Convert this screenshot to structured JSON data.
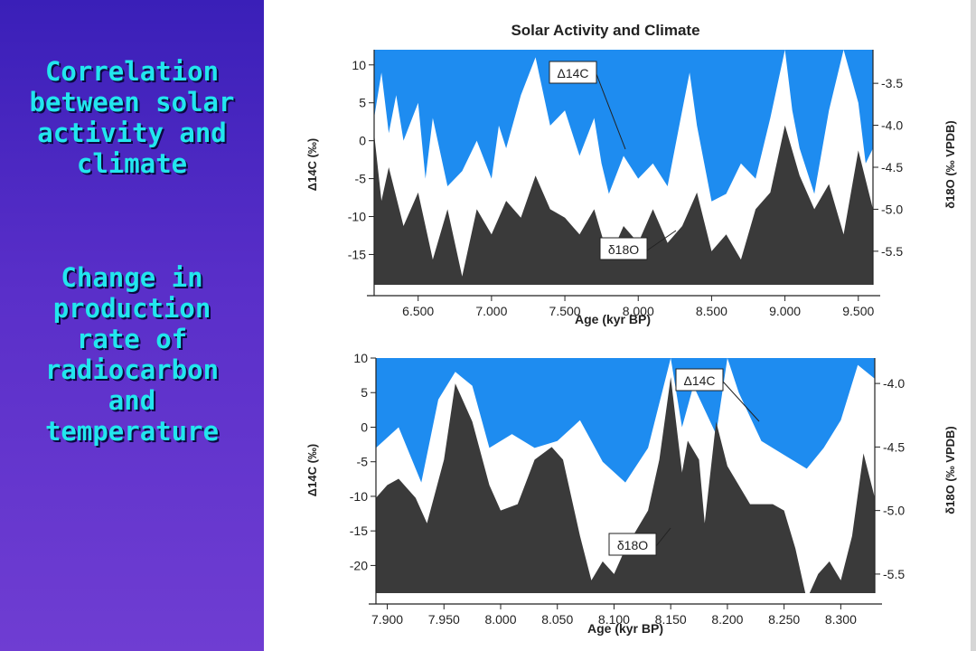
{
  "left_panel": {
    "title_lines": [
      "Correlation",
      "between solar",
      "activity and",
      "climate"
    ],
    "subtitle_lines": [
      "Change in",
      "production",
      "rate of",
      "radiocarbon",
      "and",
      "temperature"
    ],
    "text_color": "#22e6ee",
    "bg_color": "#4b28c2"
  },
  "chart_data": [
    {
      "type": "area",
      "title": "Solar Activity and Climate",
      "xlabel": "Age (kyr BP)",
      "ylabel": "Δ14C (‰)",
      "y2label": "δ18O (‰ VPDB)",
      "xlim": [
        6.2,
        9.6
      ],
      "ylim": [
        -19,
        12
      ],
      "y2lim": [
        -5.9,
        -3.1
      ],
      "x_ticks": [
        "6.500",
        "7.000",
        "7.500",
        "8.000",
        "8.500",
        "9.000",
        "9.500"
      ],
      "y_ticks": [
        "10",
        "5",
        "0",
        "-5",
        "-10",
        "-15"
      ],
      "y2_ticks": [
        "-3.5",
        "-4.0",
        "-4.5",
        "-5.0",
        "-5.5"
      ],
      "colors": {
        "background": "#1e8cf0",
        "d14c_fill": "#ffffff",
        "d18o_fill": "#3a3a3a"
      },
      "series": [
        {
          "name": "Δ14C",
          "axis": "left",
          "x": [
            6.2,
            6.25,
            6.3,
            6.35,
            6.4,
            6.5,
            6.55,
            6.6,
            6.7,
            6.8,
            6.9,
            7.0,
            7.05,
            7.1,
            7.2,
            7.3,
            7.4,
            7.5,
            7.6,
            7.7,
            7.75,
            7.8,
            7.9,
            8.0,
            8.1,
            8.2,
            8.3,
            8.35,
            8.4,
            8.5,
            8.6,
            8.7,
            8.8,
            8.9,
            9.0,
            9.05,
            9.1,
            9.2,
            9.3,
            9.4,
            9.5,
            9.55,
            9.6
          ],
          "values": [
            3,
            9,
            1,
            6,
            0,
            5,
            -5,
            3,
            -6,
            -4,
            0,
            -5,
            2,
            -1,
            6,
            11,
            2,
            4,
            -2,
            3,
            -3,
            -7,
            -2,
            -5,
            -3,
            -6,
            4,
            9,
            2,
            -8,
            -7,
            -3,
            -5,
            3,
            12,
            4,
            -1,
            -7,
            4,
            12,
            5,
            -3,
            -1
          ]
        },
        {
          "name": "δ18O",
          "axis": "right",
          "x": [
            6.2,
            6.25,
            6.3,
            6.4,
            6.5,
            6.6,
            6.7,
            6.8,
            6.9,
            7.0,
            7.1,
            7.2,
            7.3,
            7.4,
            7.5,
            7.6,
            7.7,
            7.8,
            7.9,
            8.0,
            8.1,
            8.2,
            8.3,
            8.4,
            8.5,
            8.6,
            8.7,
            8.8,
            8.9,
            9.0,
            9.1,
            9.2,
            9.3,
            9.4,
            9.5,
            9.6
          ],
          "values": [
            -4.1,
            -4.9,
            -4.5,
            -5.2,
            -4.8,
            -5.6,
            -5.0,
            -5.8,
            -5.0,
            -5.3,
            -4.9,
            -5.1,
            -4.6,
            -5.0,
            -5.1,
            -5.3,
            -5.0,
            -5.6,
            -5.2,
            -5.4,
            -5.0,
            -5.4,
            -5.2,
            -4.8,
            -5.5,
            -5.3,
            -5.6,
            -5.0,
            -4.8,
            -4.0,
            -4.6,
            -5.0,
            -4.7,
            -5.3,
            -4.3,
            -5.0
          ]
        }
      ]
    },
    {
      "type": "area",
      "title": "",
      "xlabel": "Age (kyr BP)",
      "ylabel": "Δ14C (‰)",
      "y2label": "δ18O (‰ VPDB)",
      "xlim": [
        7.89,
        8.33
      ],
      "ylim": [
        -24,
        10
      ],
      "y2lim": [
        -5.65,
        -3.8
      ],
      "x_ticks": [
        "7.900",
        "7.950",
        "8.000",
        "8.050",
        "8.100",
        "8.150",
        "8.200",
        "8.250",
        "8.300"
      ],
      "y_ticks": [
        "10",
        "5",
        "0",
        "-5",
        "-10",
        "-15",
        "-20"
      ],
      "y2_ticks": [
        "-4.0",
        "-4.5",
        "-5.0",
        "-5.5"
      ],
      "colors": {
        "background": "#1e8cf0",
        "d14c_fill": "#ffffff",
        "d18o_fill": "#3a3a3a"
      },
      "series": [
        {
          "name": "Δ14C",
          "axis": "left",
          "x": [
            7.89,
            7.91,
            7.93,
            7.945,
            7.96,
            7.975,
            7.99,
            8.01,
            8.03,
            8.05,
            8.07,
            8.09,
            8.11,
            8.13,
            8.15,
            8.16,
            8.17,
            8.19,
            8.2,
            8.21,
            8.23,
            8.25,
            8.27,
            8.285,
            8.3,
            8.315,
            8.33
          ],
          "values": [
            -3,
            0,
            -8,
            4,
            8,
            6,
            -3,
            -1,
            -3,
            -2,
            1,
            -5,
            -8,
            -3,
            10,
            0,
            6,
            -1,
            10,
            5,
            -2,
            -4,
            -6,
            -3,
            1,
            9,
            7
          ]
        },
        {
          "name": "δ18O",
          "axis": "right",
          "x": [
            7.89,
            7.9,
            7.91,
            7.925,
            7.935,
            7.95,
            7.96,
            7.975,
            7.99,
            8.0,
            8.015,
            8.03,
            8.045,
            8.055,
            8.07,
            8.08,
            8.09,
            8.1,
            8.11,
            8.13,
            8.14,
            8.15,
            8.16,
            8.165,
            8.175,
            8.18,
            8.19,
            8.2,
            8.22,
            8.24,
            8.25,
            8.26,
            8.27,
            8.28,
            8.29,
            8.3,
            8.31,
            8.32,
            8.33
          ],
          "values": [
            -4.9,
            -4.8,
            -4.75,
            -4.9,
            -5.1,
            -4.6,
            -4.0,
            -4.3,
            -4.8,
            -5.0,
            -4.95,
            -4.6,
            -4.5,
            -4.6,
            -5.2,
            -5.55,
            -5.4,
            -5.5,
            -5.3,
            -5.0,
            -4.6,
            -3.95,
            -4.7,
            -4.45,
            -4.6,
            -5.1,
            -4.3,
            -4.65,
            -4.95,
            -4.95,
            -5.0,
            -5.3,
            -5.7,
            -5.5,
            -5.4,
            -5.55,
            -5.2,
            -4.55,
            -4.9
          ]
        }
      ]
    }
  ],
  "annotations": {
    "top": {
      "d14c": "Δ14C",
      "d18o": "δ18O"
    },
    "bottom": {
      "d14c": "Δ14C",
      "d18o": "δ18O"
    }
  }
}
